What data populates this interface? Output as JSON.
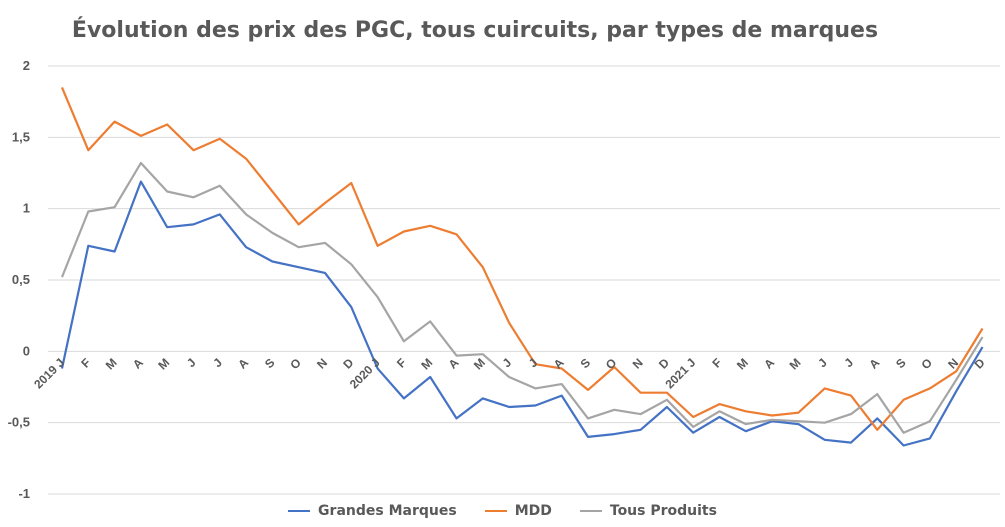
{
  "chart_data": {
    "type": "line",
    "title": "Évolution des prix des PGC, tous cuircuits, par types de marques",
    "xlabel": "",
    "ylabel": "",
    "ylim": [
      -1,
      2
    ],
    "yticks": [
      "2",
      "1,5",
      "1",
      "0,5",
      "0",
      "-0,5",
      "-1"
    ],
    "ytick_values": [
      2,
      1.5,
      1,
      0.5,
      0,
      -0.5,
      -1
    ],
    "categories": [
      "2019 J",
      "F",
      "M",
      "A",
      "M",
      "J",
      "J",
      "A",
      "S",
      "O",
      "N",
      "D",
      "2020 J",
      "F",
      "M",
      "A",
      "M",
      "J",
      "J",
      "A",
      "S",
      "O",
      "N",
      "D",
      "2021 J",
      "F",
      "M",
      "A",
      "M",
      "J",
      "J",
      "A",
      "S",
      "O",
      "N",
      "D"
    ],
    "grid": true,
    "legend_position": "bottom",
    "series": [
      {
        "name": "Grandes Marques",
        "color": "#4472c4",
        "values": [
          -0.12,
          0.74,
          0.7,
          1.19,
          0.87,
          0.89,
          0.96,
          0.73,
          0.63,
          0.59,
          0.55,
          0.31,
          -0.12,
          -0.33,
          -0.18,
          -0.47,
          -0.33,
          -0.39,
          -0.38,
          -0.31,
          -0.6,
          -0.58,
          -0.55,
          -0.39,
          -0.57,
          -0.46,
          -0.56,
          -0.49,
          -0.51,
          -0.62,
          -0.64,
          -0.47,
          -0.66,
          -0.61,
          -0.28,
          0.03
        ]
      },
      {
        "name": "MDD",
        "color": "#ed7d31",
        "values": [
          1.85,
          1.41,
          1.61,
          1.51,
          1.59,
          1.41,
          1.49,
          1.35,
          1.12,
          0.89,
          1.04,
          1.18,
          0.74,
          0.84,
          0.88,
          0.82,
          0.59,
          0.2,
          -0.09,
          -0.12,
          -0.27,
          -0.11,
          -0.29,
          -0.29,
          -0.46,
          -0.37,
          -0.42,
          -0.45,
          -0.43,
          -0.26,
          -0.31,
          -0.55,
          -0.34,
          -0.26,
          -0.14,
          0.16
        ]
      },
      {
        "name": "Tous Produits",
        "color": "#a5a5a5",
        "values": [
          0.52,
          0.98,
          1.01,
          1.32,
          1.12,
          1.08,
          1.16,
          0.96,
          0.83,
          0.73,
          0.76,
          0.61,
          0.38,
          0.07,
          0.21,
          -0.03,
          -0.02,
          -0.18,
          -0.26,
          -0.23,
          -0.47,
          -0.41,
          -0.44,
          -0.34,
          -0.53,
          -0.42,
          -0.51,
          -0.48,
          -0.49,
          -0.5,
          -0.44,
          -0.3,
          -0.57,
          -0.49,
          -0.2,
          0.1
        ]
      }
    ]
  }
}
